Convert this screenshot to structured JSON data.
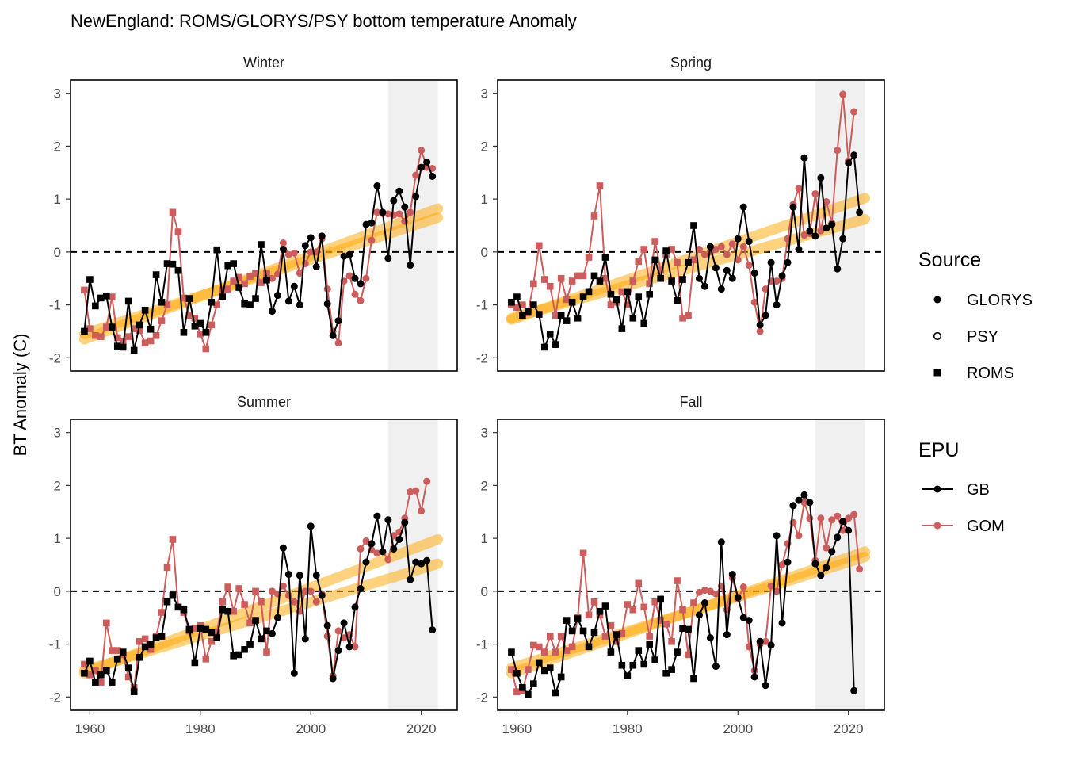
{
  "chart_data": {
    "type": "line",
    "title": "NewEngland: ROMS/GLORYS/PSY bottom temperature Anomaly",
    "ylabel": "BT Anomaly (C)",
    "xlim": [
      1956.5,
      2026.5
    ],
    "ylim": [
      -2.25,
      3.25
    ],
    "x_ticks": [
      1960,
      1980,
      2000,
      2020
    ],
    "y_ticks": [
      -2,
      -1,
      0,
      1,
      2,
      3
    ],
    "reference_line_y": 0,
    "shaded_period": [
      2014,
      2023
    ],
    "colors": {
      "GB": "#000000",
      "GOM": "#cd5c5c",
      "trend": "#ffa500",
      "shade": "#f0f0f0"
    },
    "legend": {
      "source_title": "Source",
      "source_items": [
        {
          "label": "GLORYS",
          "shape": "circle-filled"
        },
        {
          "label": "PSY",
          "shape": "circle-open"
        },
        {
          "label": "ROMS",
          "shape": "square-filled"
        }
      ],
      "epu_title": "EPU",
      "epu_items": [
        {
          "label": "GB",
          "color": "#000000"
        },
        {
          "label": "GOM",
          "color": "#cd5c5c"
        }
      ]
    },
    "panels": [
      {
        "season": "Winter",
        "series": [
          {
            "name": "GB",
            "start_year": 1959,
            "source_switch_year": 1993,
            "values": [
              -1.5,
              -0.52,
              -1.02,
              -0.87,
              -0.83,
              -1.42,
              -1.78,
              -1.8,
              -0.93,
              -1.86,
              -1.38,
              -1.1,
              -1.46,
              -0.43,
              -0.95,
              -0.22,
              -0.23,
              -0.35,
              -1.52,
              -0.88,
              -1.4,
              -1.35,
              -1.52,
              -0.95,
              0.04,
              -0.85,
              -0.26,
              -0.22,
              -0.67,
              -0.98,
              -1.0,
              -0.88,
              0.14,
              -0.53,
              -1.12,
              -0.82,
              0.05,
              -0.93,
              -0.65,
              -1.0,
              0.12,
              0.27,
              -0.28,
              0.3,
              -0.98,
              -1.58,
              -1.3,
              -0.08,
              -0.05,
              -0.5,
              -0.6,
              0.52,
              0.55,
              1.25,
              0.75,
              -0.12,
              0.97,
              1.15,
              0.85,
              -0.25,
              1.05,
              1.6,
              1.7,
              1.43
            ]
          },
          {
            "name": "GOM",
            "start_year": 1959,
            "source_switch_year": 1993,
            "values": [
              -0.72,
              -1.45,
              -1.58,
              -1.6,
              -1.42,
              -0.85,
              -1.62,
              -1.7,
              -1.6,
              -1.45,
              -1.48,
              -1.72,
              -1.68,
              -1.58,
              -1.3,
              -1.0,
              0.75,
              0.38,
              -0.87,
              -1.2,
              -1.25,
              -1.55,
              -1.83,
              -1.38,
              -1.0,
              -0.72,
              -0.7,
              -0.55,
              -0.48,
              -0.6,
              -0.46,
              -0.4,
              -0.58,
              -0.4,
              -0.5,
              -0.42,
              0.17,
              -0.05,
              -0.02,
              -0.4,
              -0.22,
              0.0,
              0.0,
              0.25,
              -0.7,
              -1.5,
              -1.72,
              -0.55,
              -0.45,
              -0.8,
              -0.92,
              -0.5,
              0.22,
              0.75,
              0.73,
              0.72,
              0.7,
              0.72,
              0.58,
              0.75,
              1.45,
              1.92,
              1.6,
              1.58
            ]
          }
        ],
        "trends": [
          {
            "name": "GB",
            "from": [
              1959,
              -1.55
            ],
            "to": [
              2023,
              0.65
            ]
          },
          {
            "name": "GOM",
            "from": [
              1959,
              -1.65
            ],
            "to": [
              2023,
              0.82
            ]
          }
        ]
      },
      {
        "season": "Spring",
        "series": [
          {
            "name": "GB",
            "start_year": 1959,
            "source_switch_year": 1993,
            "values": [
              -0.95,
              -0.85,
              -1.2,
              -1.12,
              -1.0,
              -1.18,
              -1.8,
              -1.55,
              -1.75,
              -1.2,
              -1.3,
              -0.95,
              -1.25,
              -0.85,
              -0.75,
              -0.45,
              -0.55,
              -0.1,
              -0.8,
              -0.9,
              -1.45,
              -0.75,
              -1.25,
              -0.85,
              -1.35,
              -0.8,
              -0.15,
              -0.5,
              0.02,
              -0.55,
              -0.92,
              -0.52,
              -0.2,
              0.5,
              -0.5,
              -0.65,
              0.1,
              -0.3,
              -0.7,
              -0.35,
              -0.5,
              0.25,
              0.85,
              0.2,
              -0.4,
              -1.38,
              -1.2,
              -0.2,
              -1.0,
              -0.45,
              -0.2,
              0.85,
              0.05,
              1.78,
              0.4,
              0.3,
              1.4,
              0.45,
              0.52,
              -0.32,
              0.25,
              1.68,
              1.83,
              0.75
            ]
          },
          {
            "name": "GOM",
            "start_year": 1959,
            "source_switch_year": 1993,
            "values": [
              -1.0,
              -1.05,
              -1.0,
              -1.15,
              -0.6,
              0.12,
              -0.52,
              -0.65,
              -1.2,
              -0.5,
              -0.9,
              -0.55,
              -0.45,
              -0.45,
              -0.1,
              0.68,
              1.25,
              -0.5,
              -1.0,
              -0.95,
              -0.75,
              -1.0,
              -0.55,
              -0.18,
              0.05,
              -0.6,
              0.2,
              -0.35,
              -0.05,
              0.05,
              -0.2,
              -1.25,
              -1.2,
              -0.15,
              0.05,
              -0.05,
              0.0,
              0.05,
              0.1,
              -0.05,
              0.15,
              -0.15,
              0.1,
              -0.25,
              -0.95,
              -1.5,
              -0.7,
              -0.55,
              -0.55,
              -0.5,
              0.25,
              0.9,
              1.2,
              0.32,
              0.35,
              1.1,
              0.4,
              0.95,
              0.55,
              1.92,
              2.98,
              1.72,
              2.65
            ]
          }
        ],
        "trends": [
          {
            "name": "GB",
            "from": [
              1959,
              -1.25
            ],
            "to": [
              2023,
              0.62
            ]
          },
          {
            "name": "GOM",
            "from": [
              1959,
              -1.28
            ],
            "to": [
              2023,
              1.02
            ]
          }
        ]
      },
      {
        "season": "Summer",
        "series": [
          {
            "name": "GB",
            "start_year": 1959,
            "source_switch_year": 1993,
            "values": [
              -1.55,
              -1.32,
              -1.72,
              -1.58,
              -1.5,
              -1.72,
              -1.28,
              -1.15,
              -1.45,
              -1.9,
              -1.25,
              -1.05,
              -1.0,
              -0.88,
              -0.85,
              -0.2,
              -0.08,
              -0.3,
              -0.35,
              -0.72,
              -1.35,
              -0.7,
              -0.72,
              -0.78,
              -0.88,
              -0.35,
              -0.38,
              -1.22,
              -1.2,
              -1.1,
              -1.0,
              -0.55,
              -0.9,
              -0.75,
              -0.8,
              -0.5,
              0.82,
              0.32,
              -1.55,
              0.3,
              -0.9,
              1.23,
              0.3,
              -0.08,
              -0.65,
              -1.65,
              -1.12,
              -0.6,
              -1.05,
              -0.3,
              0.05,
              0.55,
              0.9,
              1.42,
              0.75,
              1.35,
              0.8,
              0.98,
              1.3,
              0.22,
              0.55,
              0.52,
              0.58,
              -0.73
            ]
          },
          {
            "name": "GOM",
            "start_year": 1959,
            "source_switch_year": 1993,
            "values": [
              -1.38,
              -1.58,
              -1.5,
              -1.72,
              -0.6,
              -1.12,
              -1.12,
              -1.2,
              -1.62,
              -1.82,
              -0.95,
              -0.9,
              -1.1,
              -0.85,
              -0.4,
              0.45,
              0.98,
              -0.3,
              -0.4,
              -0.75,
              -0.7,
              -0.65,
              -1.28,
              -0.95,
              -0.78,
              -0.2,
              0.08,
              -0.38,
              0.05,
              -0.25,
              -0.6,
              0.0,
              -0.2,
              -1.15,
              0.0,
              -0.05,
              0.1,
              -0.08,
              -0.2,
              -0.38,
              0.0,
              0.0,
              -0.2,
              -0.05,
              -0.85,
              -1.6,
              -0.75,
              -0.88,
              -0.82,
              -1.05,
              0.8,
              0.95,
              0.78,
              0.72,
              0.75,
              0.6,
              1.05,
              1.12,
              1.38,
              1.88,
              1.9,
              1.52,
              2.08
            ]
          }
        ],
        "trends": [
          {
            "name": "GB",
            "from": [
              1959,
              -1.5
            ],
            "to": [
              2023,
              0.52
            ]
          },
          {
            "name": "GOM",
            "from": [
              1959,
              -1.55
            ],
            "to": [
              2023,
              0.98
            ]
          }
        ]
      },
      {
        "season": "Fall",
        "series": [
          {
            "name": "GB",
            "start_year": 1959,
            "source_switch_year": 1993,
            "psy_year": 2023,
            "values": [
              -1.15,
              -1.55,
              -1.82,
              -1.95,
              -1.75,
              -1.35,
              -1.5,
              -1.45,
              -1.92,
              -1.62,
              -0.55,
              -0.75,
              -0.52,
              -0.75,
              -1.05,
              -0.78,
              -0.38,
              -0.28,
              -1.15,
              -0.82,
              -1.4,
              -1.6,
              -1.4,
              -1.12,
              -1.38,
              -1.0,
              -1.3,
              -0.15,
              -1.55,
              -1.48,
              -1.15,
              -0.7,
              -0.72,
              -1.65,
              -0.45,
              -0.22,
              -0.88,
              -1.42,
              0.93,
              -0.82,
              0.32,
              -0.12,
              -0.5,
              -0.55,
              -1.62,
              -0.95,
              -1.78,
              -1.02,
              1.05,
              -0.6,
              0.55,
              1.62,
              1.72,
              1.82,
              1.68,
              0.52,
              0.3,
              0.45,
              0.75,
              1.02,
              1.32,
              1.15,
              -1.88
            ]
          },
          {
            "name": "GOM",
            "start_year": 1959,
            "source_switch_year": 1993,
            "psy_year": 2023,
            "values": [
              -1.48,
              -1.9,
              -1.88,
              -1.48,
              -1.02,
              -1.05,
              -1.15,
              -0.85,
              -1.15,
              -0.85,
              -1.12,
              -1.05,
              -0.5,
              0.72,
              -0.45,
              -0.2,
              -0.45,
              -0.85,
              -0.65,
              -0.95,
              -0.8,
              -0.25,
              -0.35,
              0.15,
              -0.3,
              -0.85,
              -0.2,
              -0.55,
              -0.62,
              -0.95,
              0.2,
              -0.35,
              -1.2,
              -0.22,
              -0.02,
              0.02,
              0.0,
              -0.05,
              0.1,
              -0.35,
              0.25,
              -0.15,
              0.08,
              -1.05,
              -1.5,
              -1.0,
              -0.95,
              0.1,
              0.0,
              0.5,
              0.9,
              1.3,
              1.05,
              1.68,
              1.38,
              0.58,
              1.38,
              0.82,
              1.35,
              1.42,
              1.15,
              1.38,
              1.45,
              0.42
            ]
          }
        ],
        "trends": [
          {
            "name": "GB",
            "from": [
              1959,
              -1.45
            ],
            "to": [
              2023,
              0.65
            ]
          },
          {
            "name": "GOM",
            "from": [
              1959,
              -1.55
            ],
            "to": [
              2023,
              0.75
            ]
          }
        ]
      }
    ]
  }
}
